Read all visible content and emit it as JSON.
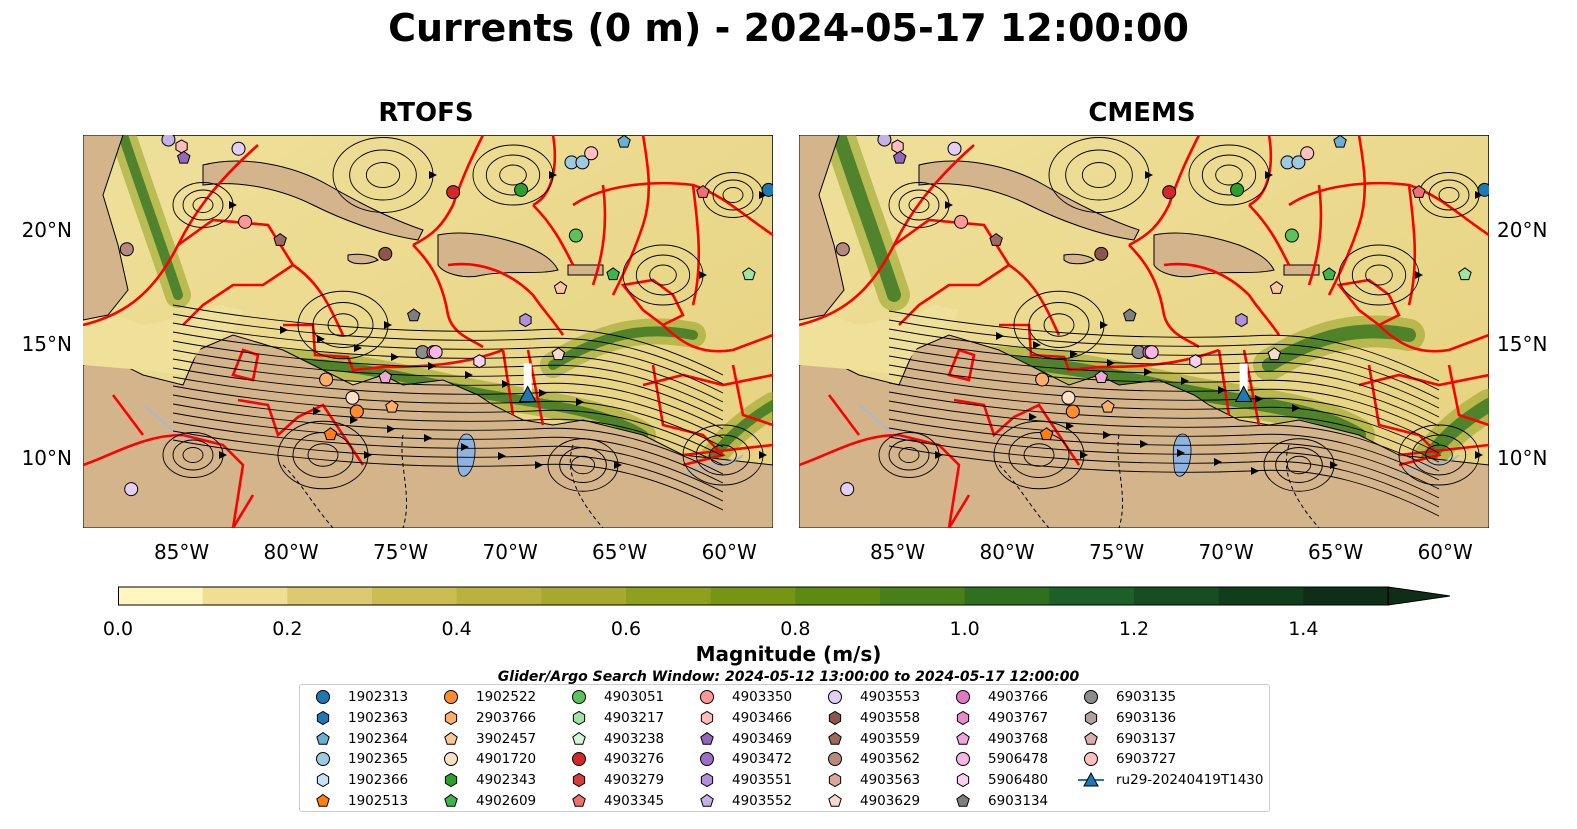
{
  "figure": {
    "title": "Currents (0 m) - 2024-05-17 12:00:00",
    "panels": [
      {
        "title": "RTOFS"
      },
      {
        "title": "CMEMS"
      }
    ],
    "lon_ticks": [
      "85°W",
      "80°W",
      "75°W",
      "70°W",
      "65°W",
      "60°W"
    ],
    "lat_ticks": [
      "20°N",
      "15°N",
      "10°N"
    ],
    "lon_range": [
      -89.5,
      -58.0
    ],
    "lat_range": [
      7.0,
      24.2
    ],
    "colorbar": {
      "label": "Magnitude (m/s)",
      "ticks": [
        "0.0",
        "0.2",
        "0.4",
        "0.6",
        "0.8",
        "1.0",
        "1.2",
        "1.4"
      ],
      "min": 0.0,
      "max": 1.5,
      "step": 0.1,
      "extend": "max",
      "colors": [
        "#fff6c0",
        "#efde94",
        "#dcc970",
        "#cbbd52",
        "#b9b23e",
        "#a7a92e",
        "#8fa01f",
        "#769513",
        "#5e8a12",
        "#478018",
        "#2e701f",
        "#1c6028",
        "#164e22",
        "#123d1d",
        "#0f2e18"
      ]
    },
    "search_window": "Glider/Argo Search Window: 2024-05-12 13:00:00 to 2024-05-17 12:00:00",
    "colors": {
      "ocean_low": "#f3e6a6",
      "ocean_high": "#1f6b2a",
      "land": "#d4b48b",
      "eez_lines": "#ff0000",
      "streamlines": "#000000",
      "glider": "#1f77b4"
    }
  },
  "legend": {
    "items": [
      {
        "label": "1902313",
        "marker": "circle",
        "color": "#1f77b4"
      },
      {
        "label": "1902363",
        "marker": "hexagon",
        "color": "#1f77b4"
      },
      {
        "label": "1902364",
        "marker": "pentagon",
        "color": "#6baed6"
      },
      {
        "label": "1902365",
        "marker": "circle",
        "color": "#9ecae1"
      },
      {
        "label": "1902366",
        "marker": "hexagon",
        "color": "#c6e2f5"
      },
      {
        "label": "1902513",
        "marker": "pentagon",
        "color": "#ff7f0e"
      },
      {
        "label": "1902522",
        "marker": "circle",
        "color": "#ff8c2e"
      },
      {
        "label": "2903766",
        "marker": "hexagon",
        "color": "#fdae6b"
      },
      {
        "label": "3902457",
        "marker": "pentagon",
        "color": "#fdc89a"
      },
      {
        "label": "4901720",
        "marker": "circle",
        "color": "#fde0c5"
      },
      {
        "label": "4902343",
        "marker": "hexagon",
        "color": "#2ca02c"
      },
      {
        "label": "4902609",
        "marker": "pentagon",
        "color": "#3cb54a"
      },
      {
        "label": "4903051",
        "marker": "circle",
        "color": "#5cc35c"
      },
      {
        "label": "4903217",
        "marker": "hexagon",
        "color": "#a1e3a1"
      },
      {
        "label": "4903238",
        "marker": "pentagon",
        "color": "#d4f5d4"
      },
      {
        "label": "4903276",
        "marker": "circle",
        "color": "#d62728"
      },
      {
        "label": "4903279",
        "marker": "hexagon",
        "color": "#d63c3c"
      },
      {
        "label": "4903345",
        "marker": "pentagon",
        "color": "#f07070"
      },
      {
        "label": "4903350",
        "marker": "circle",
        "color": "#ff9896"
      },
      {
        "label": "4903466",
        "marker": "hexagon",
        "color": "#ffbcbc"
      },
      {
        "label": "4903469",
        "marker": "pentagon",
        "color": "#9467bd"
      },
      {
        "label": "4903472",
        "marker": "circle",
        "color": "#9a6fc7"
      },
      {
        "label": "4903551",
        "marker": "hexagon",
        "color": "#b190d8"
      },
      {
        "label": "4903552",
        "marker": "pentagon",
        "color": "#c5b0e8"
      },
      {
        "label": "4903553",
        "marker": "circle",
        "color": "#e3cff5"
      },
      {
        "label": "4903558",
        "marker": "hexagon",
        "color": "#8c564b"
      },
      {
        "label": "4903559",
        "marker": "pentagon",
        "color": "#9c6b5e"
      },
      {
        "label": "4903562",
        "marker": "circle",
        "color": "#b88a7e"
      },
      {
        "label": "4903563",
        "marker": "hexagon",
        "color": "#d9a89a"
      },
      {
        "label": "4903629",
        "marker": "pentagon",
        "color": "#f7d9cf"
      },
      {
        "label": "4903766",
        "marker": "circle",
        "color": "#e377c2"
      },
      {
        "label": "4903767",
        "marker": "hexagon",
        "color": "#e78ac8"
      },
      {
        "label": "4903768",
        "marker": "pentagon",
        "color": "#f0a6d8"
      },
      {
        "label": "5906478",
        "marker": "circle",
        "color": "#f7b6e3"
      },
      {
        "label": "5906480",
        "marker": "hexagon",
        "color": "#fbd0ee"
      },
      {
        "label": "6903134",
        "marker": "pentagon",
        "color": "#7f7f7f"
      },
      {
        "label": "6903135",
        "marker": "circle",
        "color": "#8c8c8c"
      },
      {
        "label": "6903136",
        "marker": "hexagon",
        "color": "#b0a0a0"
      },
      {
        "label": "6903137",
        "marker": "pentagon",
        "color": "#d8b0b0"
      },
      {
        "label": "6903727",
        "marker": "circle",
        "color": "#ffc0c0"
      },
      {
        "label": "ru29-20240419T1430",
        "marker": "triangle-line",
        "color": "#1f77b4"
      }
    ]
  },
  "floats": [
    {
      "lon": -85.6,
      "lat": 24.0,
      "color": "#c5b0e8",
      "marker": "circle"
    },
    {
      "lon": -85.0,
      "lat": 23.7,
      "color": "#ffbcbc",
      "marker": "hexagon"
    },
    {
      "lon": -84.9,
      "lat": 23.2,
      "color": "#9467bd",
      "marker": "pentagon"
    },
    {
      "lon": -82.4,
      "lat": 23.6,
      "color": "#e3cff5",
      "marker": "circle"
    },
    {
      "lon": -82.1,
      "lat": 20.4,
      "color": "#ff9896",
      "marker": "circle"
    },
    {
      "lon": -80.5,
      "lat": 19.6,
      "color": "#9c6b5e",
      "marker": "pentagon"
    },
    {
      "lon": -87.5,
      "lat": 19.2,
      "color": "#b88a7e",
      "marker": "circle"
    },
    {
      "lon": -75.7,
      "lat": 19.0,
      "color": "#8c564b",
      "marker": "circle"
    },
    {
      "lon": -72.6,
      "lat": 21.7,
      "color": "#d62728",
      "marker": "circle"
    },
    {
      "lon": -69.5,
      "lat": 21.8,
      "color": "#2ca02c",
      "marker": "circle"
    },
    {
      "lon": -67.2,
      "lat": 23.0,
      "color": "#9ecae1",
      "marker": "circle"
    },
    {
      "lon": -66.7,
      "lat": 23.0,
      "color": "#9ecae1",
      "marker": "circle"
    },
    {
      "lon": -66.3,
      "lat": 23.4,
      "color": "#ffc0c0",
      "marker": "circle"
    },
    {
      "lon": -64.8,
      "lat": 23.9,
      "color": "#6baed6",
      "marker": "pentagon"
    },
    {
      "lon": -58.2,
      "lat": 21.8,
      "color": "#1f77b4",
      "marker": "circle"
    },
    {
      "lon": -61.2,
      "lat": 21.7,
      "color": "#f07070",
      "marker": "pentagon"
    },
    {
      "lon": -67.0,
      "lat": 19.8,
      "color": "#5cc35c",
      "marker": "circle"
    },
    {
      "lon": -65.3,
      "lat": 18.1,
      "color": "#3cb54a",
      "marker": "pentagon"
    },
    {
      "lon": -59.1,
      "lat": 18.1,
      "color": "#a1e3a1",
      "marker": "pentagon"
    },
    {
      "lon": -67.7,
      "lat": 17.5,
      "color": "#fdc89a",
      "marker": "pentagon"
    },
    {
      "lon": -74.4,
      "lat": 16.3,
      "color": "#7f7f7f",
      "marker": "pentagon"
    },
    {
      "lon": -69.3,
      "lat": 16.1,
      "color": "#b190d8",
      "marker": "hexagon"
    },
    {
      "lon": -74.0,
      "lat": 14.7,
      "color": "#8c8c8c",
      "marker": "circle"
    },
    {
      "lon": -73.5,
      "lat": 14.7,
      "color": "#e377c2",
      "marker": "circle"
    },
    {
      "lon": -73.4,
      "lat": 14.7,
      "color": "#f7b6e3",
      "marker": "circle"
    },
    {
      "lon": -71.4,
      "lat": 14.3,
      "color": "#fbd0ee",
      "marker": "hexagon"
    },
    {
      "lon": -67.8,
      "lat": 14.6,
      "color": "#f7d9cf",
      "marker": "pentagon"
    },
    {
      "lon": -75.7,
      "lat": 13.6,
      "color": "#f0a6d8",
      "marker": "pentagon"
    },
    {
      "lon": -78.4,
      "lat": 13.5,
      "color": "#fdae6b",
      "marker": "circle"
    },
    {
      "lon": -77.2,
      "lat": 12.7,
      "color": "#fde0c5",
      "marker": "circle"
    },
    {
      "lon": -77.0,
      "lat": 12.1,
      "color": "#ff8c2e",
      "marker": "circle"
    },
    {
      "lon": -75.4,
      "lat": 12.3,
      "color": "#fdae6b",
      "marker": "pentagon"
    },
    {
      "lon": -78.2,
      "lat": 11.1,
      "color": "#ff7f0e",
      "marker": "pentagon"
    },
    {
      "lon": -87.3,
      "lat": 8.7,
      "color": "#e3cff5",
      "marker": "circle"
    }
  ],
  "glider": {
    "lon": -69.2,
    "lat": 12.8
  }
}
